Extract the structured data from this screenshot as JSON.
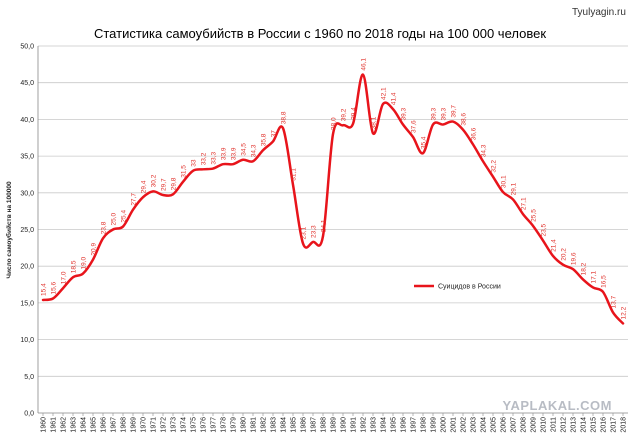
{
  "site": "Tyulyagin.ru",
  "watermark": "YAPLAKAL.COM",
  "chart_data": {
    "type": "line",
    "title": "Статистика самоубийств в России с 1960 по 2018 годы на 100 000 человек",
    "xlabel": "",
    "ylabel": "Число самоубийств на 100000",
    "ylim": [
      0,
      50
    ],
    "yticks": [
      "0,0",
      "5,0",
      "10,0",
      "15,0",
      "20,0",
      "25,0",
      "30,0",
      "35,0",
      "40,0",
      "45,0",
      "50,0"
    ],
    "grid": true,
    "legend_position": "right",
    "color": "#e8141b",
    "x": [
      1960,
      1961,
      1962,
      1963,
      1964,
      1965,
      1966,
      1967,
      1968,
      1969,
      1970,
      1971,
      1972,
      1973,
      1974,
      1975,
      1976,
      1977,
      1978,
      1979,
      1980,
      1981,
      1982,
      1983,
      1984,
      1985,
      1986,
      1987,
      1988,
      1989,
      1990,
      1991,
      1992,
      1993,
      1994,
      1995,
      1996,
      1997,
      1998,
      1999,
      2000,
      2001,
      2002,
      2003,
      2004,
      2005,
      2006,
      2007,
      2008,
      2009,
      2010,
      2011,
      2012,
      2013,
      2014,
      2015,
      2016,
      2017,
      2018
    ],
    "series": [
      {
        "name": "Суицидов в России",
        "values": [
          15.4,
          15.6,
          17.0,
          18.5,
          19.0,
          20.9,
          23.8,
          25.0,
          25.4,
          27.7,
          29.4,
          30.2,
          29.7,
          29.8,
          31.5,
          33.0,
          33.2,
          33.3,
          33.9,
          33.9,
          34.5,
          34.3,
          35.8,
          37.0,
          38.8,
          31.1,
          23.1,
          23.3,
          24.1,
          38.0,
          39.2,
          39.4,
          46.1,
          38.1,
          42.1,
          41.4,
          39.3,
          37.6,
          35.4,
          39.3,
          39.3,
          39.7,
          38.6,
          36.6,
          34.3,
          32.2,
          30.1,
          29.1,
          27.1,
          25.5,
          23.5,
          21.4,
          20.2,
          19.6,
          18.2,
          17.1,
          16.5,
          13.7,
          12.2
        ],
        "labels": [
          "15,4",
          "15,6",
          "17,0",
          "18,5",
          "19,0",
          "20,9",
          "23,8",
          "25,0",
          "25,4",
          "27,7",
          "29,4",
          "30,2",
          "29,7",
          "29,8",
          "31,5",
          "33",
          "33,2",
          "33,3",
          "33,9",
          "33,9",
          "34,5",
          "34,3",
          "35,8",
          "37",
          "38,8",
          "31,1",
          "23,1",
          "23,3",
          "24,1",
          "38,0",
          "39,2",
          "39,4",
          "46,1",
          "38,1",
          "42,1",
          "41,4",
          "39,3",
          "37,6",
          "35,4",
          "39,3",
          "39,3",
          "39,7",
          "38,6",
          "36,6",
          "34,3",
          "32,2",
          "30,1",
          "29,1",
          "27,1",
          "25,5",
          "23,5",
          "21,4",
          "20,2",
          "19,6",
          "18,2",
          "17,1",
          "16,5",
          "13,7",
          "12,2"
        ]
      }
    ]
  }
}
